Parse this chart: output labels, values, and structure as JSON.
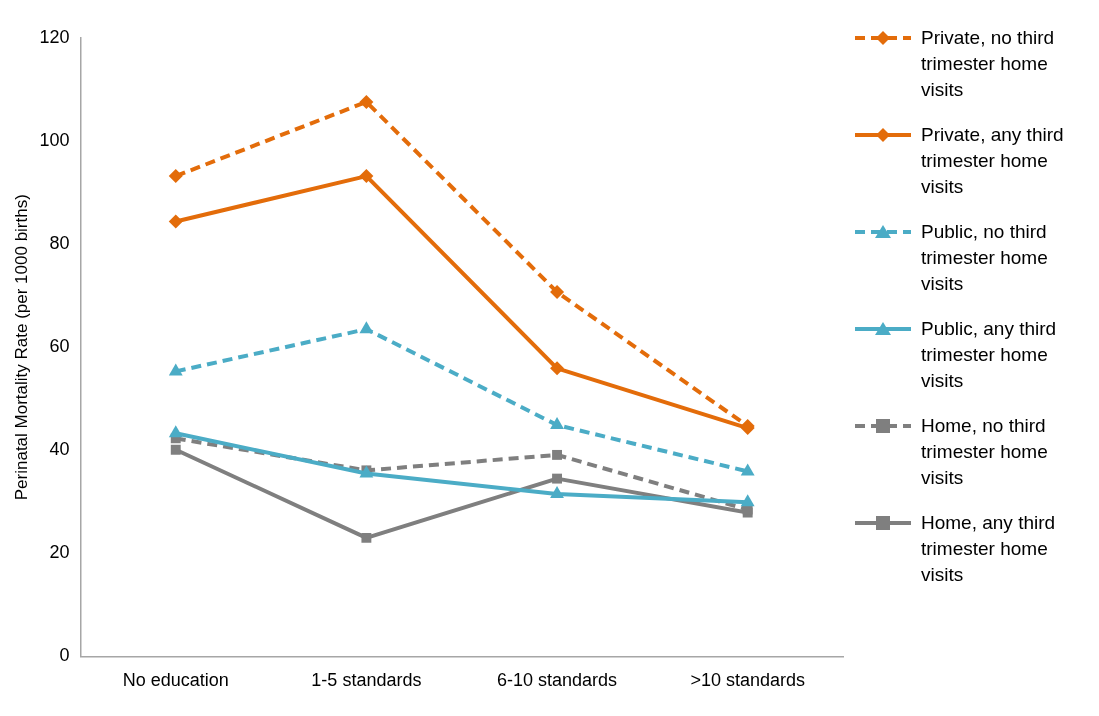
{
  "chart_data": {
    "type": "line",
    "ylabel": "Perinatal Mortality Rate (per 1000 births)",
    "categories": [
      "No education",
      "1-5 standards",
      "6-10 standards",
      ">10 standards"
    ],
    "ylim": [
      0,
      120
    ],
    "yticks": [
      0,
      20,
      40,
      60,
      80,
      100,
      120
    ],
    "grid": false,
    "legend": "right",
    "series": [
      {
        "name": "Private, no third trimester home visits",
        "color": "#e36c0a",
        "values": [
          93.2,
          107.6,
          70.7,
          44.7
        ],
        "marker": "diamond",
        "line_style": "dashed"
      },
      {
        "name": "Private, any third trimester home visits",
        "color": "#e36c0a",
        "values": [
          84.4,
          93.2,
          55.9,
          44.3
        ],
        "marker": "diamond",
        "line_style": "solid"
      },
      {
        "name": "Public, no third trimester home visits",
        "color": "#4bacc6",
        "values": [
          55.3,
          63.5,
          44.9,
          35.9
        ],
        "marker": "triangle",
        "line_style": "dashed"
      },
      {
        "name": "Public, any third trimester home visits",
        "color": "#4bacc6",
        "values": [
          43.3,
          35.5,
          31.5,
          29.9
        ],
        "marker": "triangle",
        "line_style": "solid"
      },
      {
        "name": "Home, no third trimester home visits",
        "color": "#7f7f7f",
        "values": [
          42.3,
          36.1,
          39.1,
          28.5
        ],
        "marker": "square",
        "line_style": "dashed"
      },
      {
        "name": "Home, any third trimester home visits",
        "color": "#7f7f7f",
        "values": [
          40.1,
          23.0,
          34.5,
          27.9
        ],
        "marker": "square",
        "line_style": "solid"
      }
    ]
  }
}
